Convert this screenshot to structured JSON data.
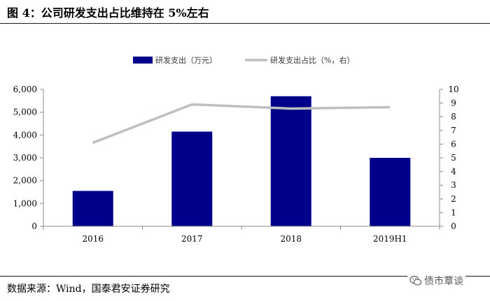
{
  "figure": {
    "title": "图 4：公司研发支出占比维持在 5%左右",
    "source": "数据来源：Wind，国泰君安证券研究",
    "watermark": "债市覃谈"
  },
  "colors": {
    "bar": "#00008B",
    "line": "#BFBFBF",
    "axis": "#8c8c8c",
    "text": "#000000"
  },
  "chart_data": {
    "type": "bar",
    "title": "",
    "categories": [
      "2016",
      "2017",
      "2018",
      "2019H1"
    ],
    "series": [
      {
        "name": "研发支出（万元）",
        "type": "bar",
        "axis": "left",
        "values": [
          1550,
          4150,
          5700,
          3000
        ]
      },
      {
        "name": "研发支出占比（%，右）",
        "type": "line",
        "axis": "right",
        "values": [
          6.1,
          8.9,
          8.6,
          8.7
        ]
      }
    ],
    "y_left": {
      "min": 0,
      "max": 6000,
      "step": 1000,
      "ticks": [
        "0",
        "1,000",
        "2,000",
        "3,000",
        "4,000",
        "5,000",
        "6,000"
      ]
    },
    "y_right": {
      "min": 0,
      "max": 10,
      "step": 1,
      "ticks": [
        "0",
        "1",
        "2",
        "3",
        "4",
        "5",
        "6",
        "7",
        "8",
        "9",
        "10"
      ]
    },
    "xlabel": "",
    "ylabel": "",
    "grid": false,
    "legend_position": "top-center"
  }
}
